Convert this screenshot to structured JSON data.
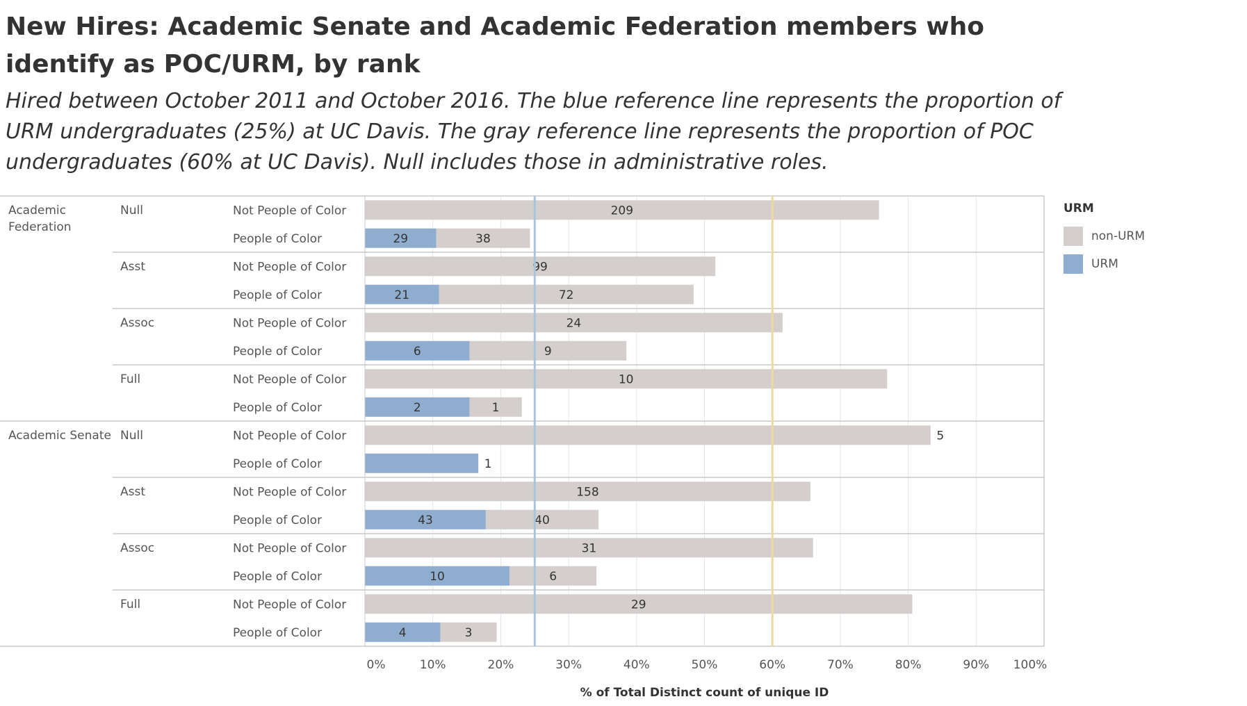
{
  "title": "New Hires: Academic Senate and Academic Federation members who identify as POC/URM, by rank",
  "subtitle": "Hired between October 2011 and October 2016. The blue reference line represents the proportion of URM undergraduates (25%) at UC Davis. The gray reference line represents the proportion of POC undergraduates (60% at UC Davis). Null includes those in administrative roles.",
  "colors": {
    "nonurm": "#d4cfcd",
    "urm": "#8fadce",
    "ref_urm": "#a9c4de",
    "ref_poc": "#ecd9a0",
    "grid": "#e6e6e6",
    "sep": "#c8c8c8"
  },
  "chart_data": {
    "type": "bar",
    "orientation": "horizontal",
    "stacked": true,
    "xlabel": "% of Total Distinct count of unique ID",
    "xlim": [
      0,
      100
    ],
    "x_ticks": [
      "0%",
      "10%",
      "20%",
      "30%",
      "40%",
      "50%",
      "60%",
      "70%",
      "80%",
      "90%",
      "100%"
    ],
    "reference_lines": [
      {
        "value": 25,
        "color": "blue"
      },
      {
        "value": 60,
        "color": "gray"
      }
    ],
    "legend": {
      "title": "URM",
      "position": "right",
      "items": [
        "non-URM",
        "URM"
      ]
    },
    "groups": [
      {
        "group": "Academic Federation",
        "ranks": [
          {
            "rank": "Null",
            "rows": [
              {
                "label": "Not People of Color",
                "urm": null,
                "nonurm": 209,
                "urm_pct": 0,
                "nonurm_pct": 75.7
              },
              {
                "label": "People of Color",
                "urm": 29,
                "nonurm": 38,
                "urm_pct": 10.5,
                "nonurm_pct": 13.8
              }
            ]
          },
          {
            "rank": "Asst",
            "rows": [
              {
                "label": "Not People of Color",
                "urm": null,
                "nonurm": 99,
                "urm_pct": 0,
                "nonurm_pct": 51.6
              },
              {
                "label": "People of Color",
                "urm": 21,
                "nonurm": 72,
                "urm_pct": 10.9,
                "nonurm_pct": 37.5
              }
            ]
          },
          {
            "rank": "Assoc",
            "rows": [
              {
                "label": "Not People of Color",
                "urm": null,
                "nonurm": 24,
                "urm_pct": 0,
                "nonurm_pct": 61.5
              },
              {
                "label": "People of Color",
                "urm": 6,
                "nonurm": 9,
                "urm_pct": 15.4,
                "nonurm_pct": 23.1
              }
            ]
          },
          {
            "rank": "Full",
            "rows": [
              {
                "label": "Not People of Color",
                "urm": null,
                "nonurm": 10,
                "urm_pct": 0,
                "nonurm_pct": 76.9
              },
              {
                "label": "People of Color",
                "urm": 2,
                "nonurm": 1,
                "urm_pct": 15.4,
                "nonurm_pct": 7.7
              }
            ]
          }
        ]
      },
      {
        "group": "Academic Senate",
        "ranks": [
          {
            "rank": "Null",
            "rows": [
              {
                "label": "Not People of Color",
                "urm": null,
                "nonurm": 5,
                "urm_pct": 0,
                "nonurm_pct": 83.3
              },
              {
                "label": "People of Color",
                "urm": 1,
                "nonurm": null,
                "urm_pct": 16.7,
                "nonurm_pct": 0
              }
            ]
          },
          {
            "rank": "Asst",
            "rows": [
              {
                "label": "Not People of Color",
                "urm": null,
                "nonurm": 158,
                "urm_pct": 0,
                "nonurm_pct": 65.6
              },
              {
                "label": "People of Color",
                "urm": 43,
                "nonurm": 40,
                "urm_pct": 17.8,
                "nonurm_pct": 16.6
              }
            ]
          },
          {
            "rank": "Assoc",
            "rows": [
              {
                "label": "Not People of Color",
                "urm": null,
                "nonurm": 31,
                "urm_pct": 0,
                "nonurm_pct": 66.0
              },
              {
                "label": "People of Color",
                "urm": 10,
                "nonurm": 6,
                "urm_pct": 21.3,
                "nonurm_pct": 12.8
              }
            ]
          },
          {
            "rank": "Full",
            "rows": [
              {
                "label": "Not People of Color",
                "urm": null,
                "nonurm": 29,
                "urm_pct": 0,
                "nonurm_pct": 80.6
              },
              {
                "label": "People of Color",
                "urm": 4,
                "nonurm": 3,
                "urm_pct": 11.1,
                "nonurm_pct": 8.3
              }
            ]
          }
        ]
      }
    ]
  }
}
